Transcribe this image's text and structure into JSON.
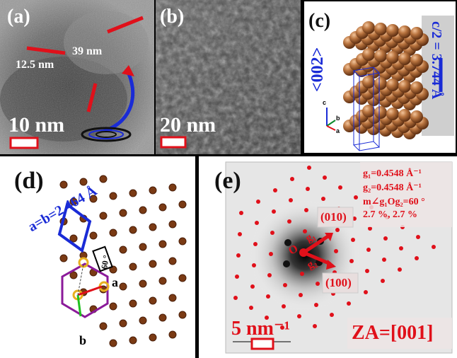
{
  "panels": {
    "a": {
      "label": "(a)",
      "measure_1": "39 nm",
      "measure_2": "12.5 nm",
      "scale_bar": "10 nm"
    },
    "b": {
      "label": "(b)",
      "scale_bar": "20 nm"
    },
    "c": {
      "label": "(c)",
      "direction": "<002>",
      "spacing": "c/2 = 3.744 Å",
      "axis_c": "c",
      "axis_b": "b",
      "axis_a": "a"
    },
    "d": {
      "label": "(d)",
      "lattice": "a=b=2.464 Å",
      "angle": "60 °",
      "vec_a": "a",
      "vec_b": "b"
    },
    "e": {
      "label": "(e)",
      "g1": "g₁=0.4548 Å⁻¹",
      "g2": "g₂=0.4548 Å⁻¹",
      "angle": "m∠g₁Og₂=60 °",
      "error": "2.7 %, 2.7 %",
      "spot_010": "(010)",
      "spot_100": "(100)",
      "origin": "O",
      "g1_label": "g₁",
      "g2_label": "g₂",
      "scale_bar": "5 nm⁻¹",
      "zone_axis": "ZA=[001]"
    }
  },
  "colors": {
    "red": "#e0101a",
    "blue": "#1a2bd6",
    "bronze": "#b06a3a",
    "purple": "#8b1a9a",
    "background": "#000000"
  }
}
